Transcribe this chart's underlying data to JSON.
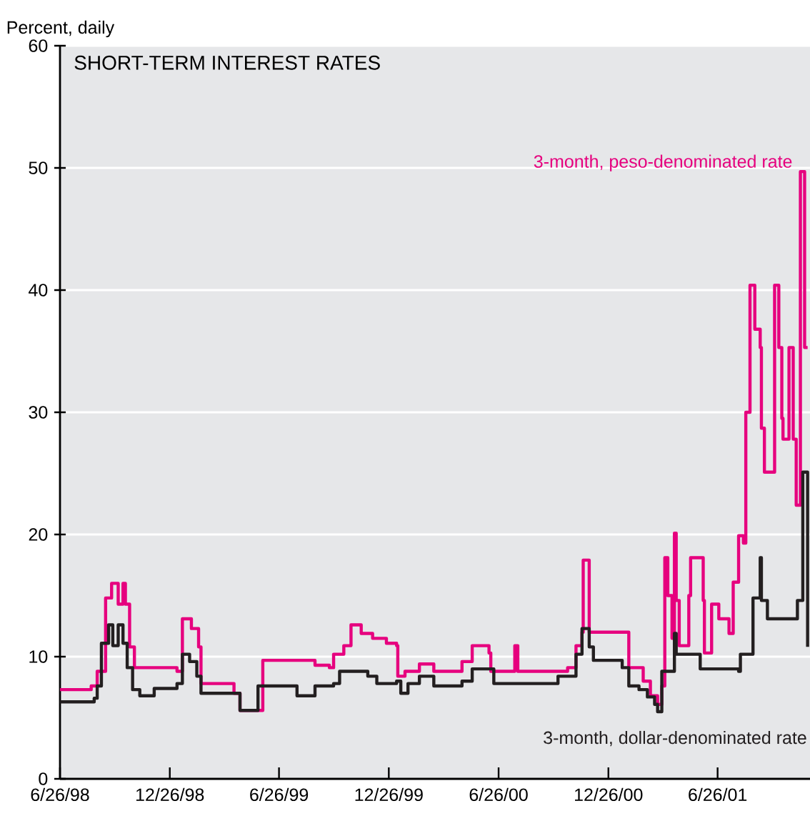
{
  "chart_data": {
    "type": "step",
    "title": "SHORT-TERM INTEREST RATES",
    "ylabel": "Percent, daily",
    "xlim": [
      "1998-06-26",
      "2001-11-27"
    ],
    "ylim": [
      0,
      60
    ],
    "yticks": [
      0,
      10,
      20,
      30,
      40,
      50,
      60
    ],
    "xticks": [
      {
        "value": "1998-06-26",
        "label": "6/26/98"
      },
      {
        "value": "1998-12-26",
        "label": "12/26/98"
      },
      {
        "value": "1999-06-26",
        "label": "6/26/99"
      },
      {
        "value": "1999-12-26",
        "label": "12/26/99"
      },
      {
        "value": "2000-06-26",
        "label": "6/26/00"
      },
      {
        "value": "2000-12-26",
        "label": "12/26/00"
      },
      {
        "value": "2001-06-26",
        "label": "6/26/01"
      }
    ],
    "grid": "y",
    "series": [
      {
        "name": "3-month, peso-denominated rate",
        "color": "#e6007e",
        "x": [
          "1998-06-26",
          "1998-08-10",
          "1998-08-17",
          "1998-08-27",
          "1998-09-10",
          "1998-09-20",
          "1998-10-01",
          "1998-10-09",
          "1998-10-13",
          "1998-10-20",
          "1998-10-28",
          "1999-01-07",
          "1999-01-16",
          "1999-01-31",
          "1999-02-12",
          "1999-02-16",
          "1999-04-12",
          "1999-04-22",
          "1999-05-22",
          "1999-05-30",
          "1999-08-25",
          "1999-09-18",
          "1999-09-25",
          "1999-10-12",
          "1999-10-24",
          "1999-11-10",
          "1999-11-29",
          "1999-12-22",
          "2000-01-08",
          "2000-01-10",
          "2000-01-22",
          "2000-02-15",
          "2000-03-10",
          "2000-04-26",
          "2000-05-13",
          "2000-06-10",
          "2000-06-13",
          "2000-07-23",
          "2000-07-28",
          "2000-09-09",
          "2000-10-19",
          "2000-11-02",
          "2000-11-12",
          "2000-11-14",
          "2000-11-24",
          "2001-01-22",
          "2001-01-29",
          "2001-02-22",
          "2001-03-06",
          "2001-03-18",
          "2001-03-25",
          "2001-03-30",
          "2001-04-04",
          "2001-04-11",
          "2001-04-15",
          "2001-04-18",
          "2001-04-23",
          "2001-05-09",
          "2001-05-12",
          "2001-05-28",
          "2001-06-02",
          "2001-06-04",
          "2001-06-16",
          "2001-06-28",
          "2001-07-15",
          "2001-07-22",
          "2001-07-31",
          "2001-08-08",
          "2001-08-12",
          "2001-08-19",
          "2001-08-27",
          "2001-09-05",
          "2001-09-07",
          "2001-09-12",
          "2001-09-29",
          "2001-10-06",
          "2001-10-11",
          "2001-10-13",
          "2001-10-23",
          "2001-10-30",
          "2001-11-04",
          "2001-11-11",
          "2001-11-18",
          "2001-11-23"
        ],
        "values": [
          7.3,
          7.3,
          7.6,
          8.8,
          14.8,
          16,
          14.3,
          16,
          14.3,
          10.8,
          9.1,
          8.8,
          13.1,
          12.3,
          10.8,
          7.8,
          7.0,
          5.6,
          5.6,
          9.7,
          9.3,
          9.1,
          10.2,
          10.9,
          12.6,
          11.9,
          11.5,
          11.1,
          10.9,
          8.4,
          8.8,
          9.4,
          8.8,
          9.6,
          10.9,
          10.3,
          8.8,
          10.9,
          8.8,
          8.8,
          9.1,
          10.9,
          12,
          17.9,
          12,
          12,
          9.1,
          8.0,
          6.8,
          6.1,
          7.6,
          18.1,
          15,
          11.5,
          20.1,
          14.6,
          10.9,
          15,
          18.1,
          18.1,
          14.6,
          10.3,
          14.3,
          13.1,
          11.9,
          16.1,
          19.9,
          19.3,
          30,
          40.4,
          36.8,
          35.3,
          28.7,
          25.1,
          40.4,
          35.3,
          29.5,
          27.8,
          35.3,
          27.8,
          22.4,
          49.7,
          35.3,
          35.3
        ]
      },
      {
        "name": "3-month, dollar-denominated rate",
        "color": "#231f20",
        "x": [
          "1998-06-26",
          "1998-08-10",
          "1998-08-22",
          "1998-08-27",
          "1998-09-03",
          "1998-09-15",
          "1998-09-22",
          "1998-10-01",
          "1998-10-09",
          "1998-10-16",
          "1998-10-25",
          "1998-11-06",
          "1998-11-30",
          "1999-01-07",
          "1999-01-16",
          "1999-01-28",
          "1999-02-09",
          "1999-02-16",
          "1999-04-22",
          "1999-05-22",
          "1999-06-08",
          "1999-07-26",
          "1999-08-25",
          "1999-09-25",
          "1999-10-05",
          "1999-11-21",
          "1999-12-06",
          "2000-01-08",
          "2000-01-15",
          "2000-01-27",
          "2000-02-15",
          "2000-03-10",
          "2000-04-26",
          "2000-05-13",
          "2000-06-18",
          "2000-09-16",
          "2000-10-03",
          "2000-11-02",
          "2000-11-12",
          "2000-11-24",
          "2000-12-01",
          "2001-01-18",
          "2001-01-29",
          "2001-02-15",
          "2001-03-01",
          "2001-03-13",
          "2001-03-18",
          "2001-03-25",
          "2001-04-15",
          "2001-04-18",
          "2001-05-16",
          "2001-05-28",
          "2001-07-31",
          "2001-08-03",
          "2001-08-24",
          "2001-09-05",
          "2001-09-07",
          "2001-09-17",
          "2001-10-30",
          "2001-11-06",
          "2001-11-15",
          "2001-11-23"
        ],
        "values": [
          6.3,
          6.3,
          6.6,
          7.6,
          11.1,
          12.6,
          10.9,
          12.6,
          11.1,
          9.1,
          7.3,
          6.8,
          7.4,
          7.8,
          10.2,
          9.6,
          8.4,
          7.0,
          5.6,
          7.6,
          7.6,
          6.8,
          7.6,
          7.8,
          8.8,
          8.4,
          7.8,
          8.0,
          7.0,
          7.8,
          8.4,
          7.6,
          8.0,
          9.0,
          7.8,
          7.8,
          8.4,
          10.2,
          12.3,
          10.8,
          9.7,
          9.1,
          7.6,
          7.3,
          6.7,
          6.1,
          5.5,
          8.8,
          11.9,
          10.2,
          10.2,
          9.0,
          8.8,
          10.2,
          14.8,
          18.1,
          14.6,
          13.1,
          13.1,
          14.6,
          25.1,
          10.8
        ]
      }
    ]
  }
}
